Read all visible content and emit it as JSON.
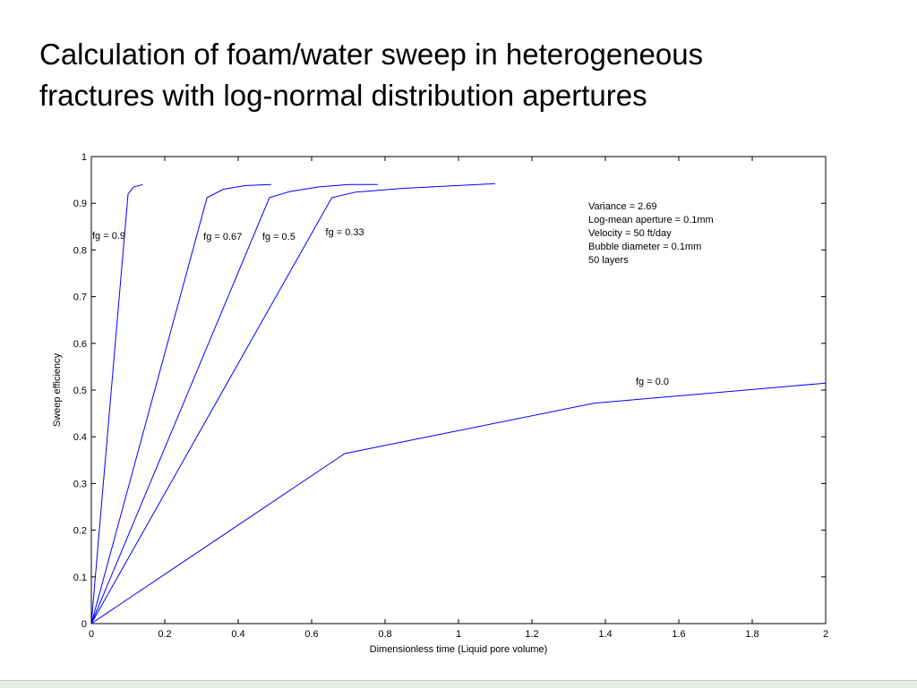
{
  "slide": {
    "title_line1": "Calculation of foam/water sweep in heterogeneous",
    "title_line2": "fractures with log-normal distribution apertures"
  },
  "chart_data": {
    "type": "line",
    "title": "",
    "xlabel": "Dimensionless time (Liquid pore volume)",
    "ylabel": "Sweep efficiency",
    "xlim": [
      0,
      2
    ],
    "ylim": [
      0,
      1
    ],
    "xticks": [
      "0",
      "0.2",
      "0.4",
      "0.6",
      "0.8",
      "1",
      "1.2",
      "1.4",
      "1.6",
      "1.8",
      "2"
    ],
    "yticks": [
      "0",
      "0.1",
      "0.2",
      "0.3",
      "0.4",
      "0.5",
      "0.6",
      "0.7",
      "0.8",
      "0.9",
      "1"
    ],
    "grid": false,
    "line_color": "#0000ff",
    "series": [
      {
        "name": "fg = 0.9",
        "x": [
          0,
          0.1,
          0.115,
          0.14
        ],
        "y": [
          0,
          0.92,
          0.935,
          0.94
        ]
      },
      {
        "name": "fg = 0.67",
        "x": [
          0,
          0.315,
          0.36,
          0.42,
          0.49
        ],
        "y": [
          0,
          0.912,
          0.93,
          0.938,
          0.94
        ]
      },
      {
        "name": "fg = 0.5",
        "x": [
          0,
          0.485,
          0.54,
          0.62,
          0.7,
          0.78
        ],
        "y": [
          0,
          0.912,
          0.925,
          0.935,
          0.94,
          0.94
        ]
      },
      {
        "name": "fg = 0.33",
        "x": [
          0,
          0.655,
          0.72,
          0.85,
          1.0,
          1.1
        ],
        "y": [
          0,
          0.912,
          0.924,
          0.932,
          0.938,
          0.942
        ]
      },
      {
        "name": "fg = 0.0",
        "x": [
          0,
          0.69,
          1.37,
          2.0
        ],
        "y": [
          0,
          0.364,
          0.472,
          0.515
        ]
      }
    ],
    "annotations": [
      "Variance = 2.69",
      "Log-mean aperture = 0.1mm",
      "Velocity = 50 ft/day",
      "Bubble diameter = 0.1mm",
      "50 layers"
    ]
  }
}
